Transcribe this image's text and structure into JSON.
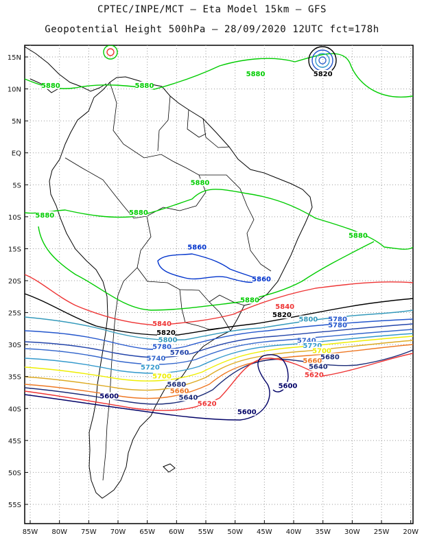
{
  "header": {
    "line1": "CPTEC/INPE/MCT –  Eta Model 15km – GFS",
    "line2": "Geopotential Height 500hPa – 28/09/2020 12UTC fct=178h"
  },
  "map": {
    "lat_labels": [
      "15N",
      "10N",
      "5N",
      "EQ",
      "5S",
      "10S",
      "15S",
      "20S",
      "25S",
      "30S",
      "35S",
      "40S",
      "45S",
      "50S",
      "55S"
    ],
    "lon_labels": [
      "85W",
      "80W",
      "75W",
      "70W",
      "65W",
      "60W",
      "55W",
      "50W",
      "45W",
      "40W",
      "35W",
      "30W",
      "25W",
      "20W"
    ],
    "grid": "dotted",
    "extent": {
      "lon": [
        -86,
        -20
      ],
      "lat": [
        -58,
        16
      ]
    }
  },
  "contours": [
    {
      "value": "5880",
      "color": "#00cc00"
    },
    {
      "value": "5860",
      "color": "#0033cc"
    },
    {
      "value": "5840",
      "color": "#ee3333"
    },
    {
      "value": "5820",
      "color": "#000000"
    },
    {
      "value": "5800",
      "color": "#3399bb"
    },
    {
      "value": "5780",
      "color": "#2255cc"
    },
    {
      "value": "5760",
      "color": "#2244aa"
    },
    {
      "value": "5740",
      "color": "#3366cc"
    },
    {
      "value": "5720",
      "color": "#3399cc"
    },
    {
      "value": "5700",
      "color": "#eeee00"
    },
    {
      "value": "5680",
      "color": "#ddaa22"
    },
    {
      "value": "5660",
      "color": "#ee7722"
    },
    {
      "value": "5640",
      "color": "#1a2a77"
    },
    {
      "value": "5620",
      "color": "#ee3333"
    },
    {
      "value": "5600",
      "color": "#000066"
    }
  ],
  "labels": [
    {
      "text": "5880",
      "lon": -81.5,
      "lat": 10.3,
      "color": "#00cc00"
    },
    {
      "text": "5880",
      "lon": -65.5,
      "lat": 10.3,
      "color": "#00cc00"
    },
    {
      "text": "5880",
      "lon": -46.5,
      "lat": 12.1,
      "color": "#00cc00"
    },
    {
      "text": "5820",
      "lon": -35.0,
      "lat": 12.1,
      "color": "#000000"
    },
    {
      "text": "5880",
      "lon": -56.0,
      "lat": -4.9,
      "color": "#00cc00"
    },
    {
      "text": "5880",
      "lon": -82.5,
      "lat": -10.0,
      "color": "#00cc00"
    },
    {
      "text": "5880",
      "lon": -66.5,
      "lat": -9.6,
      "color": "#00cc00"
    },
    {
      "text": "5880",
      "lon": -29.0,
      "lat": -13.2,
      "color": "#00cc00"
    },
    {
      "text": "5860",
      "lon": -56.5,
      "lat": -15.0,
      "color": "#0033cc"
    },
    {
      "text": "5860",
      "lon": -45.5,
      "lat": -20.0,
      "color": "#0033cc"
    },
    {
      "text": "5880",
      "lon": -47.5,
      "lat": -23.3,
      "color": "#00cc00"
    },
    {
      "text": "5840",
      "lon": -41.5,
      "lat": -24.3,
      "color": "#ee3333"
    },
    {
      "text": "5820",
      "lon": -42.0,
      "lat": -25.6,
      "color": "#000000"
    },
    {
      "text": "5800",
      "lon": -37.5,
      "lat": -26.3,
      "color": "#3399bb"
    },
    {
      "text": "5780",
      "lon": -32.5,
      "lat": -26.3,
      "color": "#2255cc"
    },
    {
      "text": "5780",
      "lon": -32.5,
      "lat": -27.2,
      "color": "#2255cc"
    },
    {
      "text": "5840",
      "lon": -62.5,
      "lat": -27.0,
      "color": "#ee3333"
    },
    {
      "text": "5820",
      "lon": -61.8,
      "lat": -28.4,
      "color": "#000000"
    },
    {
      "text": "5800",
      "lon": -61.5,
      "lat": -29.5,
      "color": "#3399bb"
    },
    {
      "text": "5780",
      "lon": -62.5,
      "lat": -30.6,
      "color": "#2255cc"
    },
    {
      "text": "5760",
      "lon": -59.5,
      "lat": -31.5,
      "color": "#2244aa"
    },
    {
      "text": "5740",
      "lon": -63.5,
      "lat": -32.4,
      "color": "#3366cc"
    },
    {
      "text": "5720",
      "lon": -64.5,
      "lat": -33.8,
      "color": "#3399cc"
    },
    {
      "text": "5700",
      "lon": -62.5,
      "lat": -35.2,
      "color": "#eeee00"
    },
    {
      "text": "5680",
      "lon": -60.0,
      "lat": -36.5,
      "color": "#1a2a77"
    },
    {
      "text": "5660",
      "lon": -59.5,
      "lat": -37.5,
      "color": "#ee7722"
    },
    {
      "text": "5640",
      "lon": -58.0,
      "lat": -38.5,
      "color": "#1a2a77"
    },
    {
      "text": "5620",
      "lon": -54.8,
      "lat": -39.5,
      "color": "#ee3333"
    },
    {
      "text": "5600",
      "lon": -71.5,
      "lat": -38.3,
      "color": "#000066"
    },
    {
      "text": "5600",
      "lon": -48.0,
      "lat": -40.8,
      "color": "#000066"
    },
    {
      "text": "5600",
      "lon": -41.0,
      "lat": -36.7,
      "color": "#000066"
    },
    {
      "text": "5740",
      "lon": -37.8,
      "lat": -29.6,
      "color": "#3366cc"
    },
    {
      "text": "5720",
      "lon": -36.8,
      "lat": -30.4,
      "color": "#3399cc"
    },
    {
      "text": "5700",
      "lon": -35.2,
      "lat": -31.2,
      "color": "#eeee00"
    },
    {
      "text": "5680",
      "lon": -33.8,
      "lat": -32.2,
      "color": "#1a2a77"
    },
    {
      "text": "5660",
      "lon": -36.8,
      "lat": -32.8,
      "color": "#ee7722"
    },
    {
      "text": "5640",
      "lon": -35.8,
      "lat": -33.7,
      "color": "#1a2a77"
    },
    {
      "text": "5620",
      "lon": -36.5,
      "lat": -35.0,
      "color": "#ee3333"
    }
  ]
}
